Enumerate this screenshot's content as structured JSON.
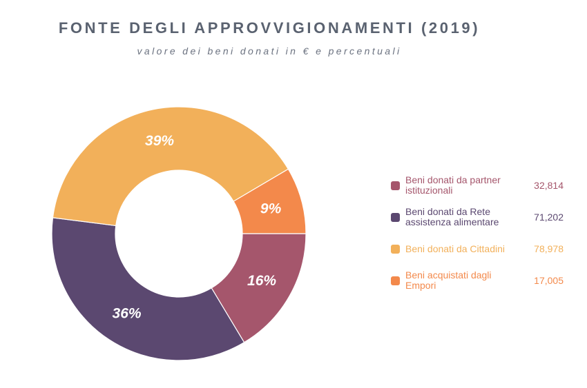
{
  "header": {
    "title": "FONTE DEGLI APPROVVIGIONAMENTI (2019)",
    "subtitle": "valore dei beni donati in € e percentuali"
  },
  "chart_data": {
    "type": "pie",
    "variant": "donut",
    "title": "FONTE DEGLI APPROVVIGIONAMENTI (2019)",
    "subtitle": "valore dei beni donati in € e percentuali",
    "legend_position": "right",
    "slices": [
      {
        "name": "Beni donati da partner istituzionali",
        "value": 32814,
        "value_label": "32,814",
        "percent_label": "16%",
        "color": "#a5566c"
      },
      {
        "name": "Beni donati da Rete assistenza alimentare",
        "value": 71202,
        "value_label": "71,202",
        "percent_label": "36%",
        "color": "#5b4870"
      },
      {
        "name": "Beni donati da Cittadini",
        "value": 78978,
        "value_label": "78,978",
        "percent_label": "39%",
        "color": "#f2b05a"
      },
      {
        "name": "Beni acquistati dagli Empori",
        "value": 17005,
        "value_label": "17,005",
        "percent_label": "9%",
        "color": "#f3894b"
      }
    ]
  },
  "legend": {
    "items": [
      {
        "label": "Beni donati da partner istituzionali",
        "value": "32,814",
        "color": "#a5566c"
      },
      {
        "label": "Beni donati da Rete assistenza alimentare",
        "value": "71,202",
        "color": "#5b4870"
      },
      {
        "label": "Beni donati da Cittadini",
        "value": "78,978",
        "color": "#f2b05a"
      },
      {
        "label": "Beni acquistati dagli Empori",
        "value": "17,005",
        "color": "#f3894b"
      }
    ]
  }
}
